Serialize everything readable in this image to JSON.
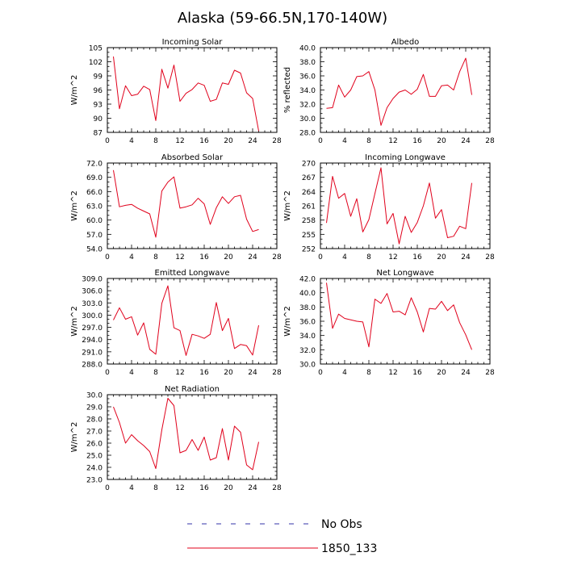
{
  "main_title": "Alaska (59-66.5N,170-140W)",
  "legend": [
    {
      "label": "No Obs",
      "color": "#3333aa",
      "style": "dashed"
    },
    {
      "label": "1850_133",
      "color": "#e0001b",
      "style": "solid"
    }
  ],
  "chart_data": [
    {
      "type": "line",
      "title": "Incoming Solar",
      "ylabel": "W/m^2",
      "xlim": [
        0,
        28
      ],
      "ylim": [
        87,
        105
      ],
      "xticks": [
        "0",
        "4",
        "8",
        "12",
        "16",
        "20",
        "24",
        "28"
      ],
      "yticks": [
        "87",
        "90",
        "93",
        "96",
        "99",
        "102",
        "105"
      ],
      "series": [
        {
          "name": "1850_133",
          "color": "#e0001b",
          "x": [
            1,
            2,
            3,
            4,
            5,
            6,
            7,
            8,
            9,
            10,
            11,
            12,
            13,
            14,
            15,
            16,
            17,
            18,
            19,
            20,
            21,
            22,
            23,
            24,
            25
          ],
          "y": [
            103.1,
            92.0,
            96.9,
            94.8,
            95.1,
            96.8,
            96.1,
            89.5,
            100.4,
            96.4,
            101.3,
            93.6,
            95.3,
            96.1,
            97.5,
            97.0,
            93.6,
            94.0,
            97.5,
            97.2,
            100.2,
            99.6,
            95.4,
            94.2,
            87.3
          ]
        }
      ]
    },
    {
      "type": "line",
      "title": "Albedo",
      "ylabel": "% reflected",
      "xlim": [
        0,
        28
      ],
      "ylim": [
        28,
        40
      ],
      "xticks": [
        "0",
        "4",
        "8",
        "12",
        "16",
        "20",
        "24",
        "28"
      ],
      "yticks": [
        "28.0",
        "30.0",
        "32.0",
        "34.0",
        "36.0",
        "38.0",
        "40.0"
      ],
      "series": [
        {
          "name": "1850_133",
          "color": "#e0001b",
          "x": [
            1,
            2,
            3,
            4,
            5,
            6,
            7,
            8,
            9,
            10,
            11,
            12,
            13,
            14,
            15,
            16,
            17,
            18,
            19,
            20,
            21,
            22,
            23,
            24,
            25
          ],
          "y": [
            31.4,
            31.5,
            34.7,
            33.0,
            34.0,
            35.9,
            36.0,
            36.6,
            34.0,
            29.0,
            31.5,
            32.8,
            33.7,
            34.0,
            33.4,
            34.1,
            36.2,
            33.1,
            33.1,
            34.6,
            34.7,
            34.0,
            36.6,
            38.5,
            33.3
          ]
        }
      ]
    },
    {
      "type": "line",
      "title": "Absorbed Solar",
      "ylabel": "W/m^2",
      "xlim": [
        0,
        28
      ],
      "ylim": [
        54,
        72
      ],
      "xticks": [
        "0",
        "4",
        "8",
        "12",
        "16",
        "20",
        "24",
        "28"
      ],
      "yticks": [
        "54.0",
        "57.0",
        "60.0",
        "63.0",
        "66.0",
        "69.0",
        "72.0"
      ],
      "series": [
        {
          "name": "1850_133",
          "color": "#e0001b",
          "x": [
            1,
            2,
            3,
            4,
            5,
            6,
            7,
            8,
            9,
            10,
            11,
            12,
            13,
            14,
            15,
            16,
            17,
            18,
            19,
            20,
            21,
            22,
            23,
            24,
            25
          ],
          "y": [
            70.5,
            62.8,
            63.1,
            63.3,
            62.5,
            61.9,
            61.3,
            56.4,
            66.1,
            68.0,
            69.1,
            62.5,
            62.8,
            63.2,
            64.6,
            63.4,
            59.1,
            62.6,
            64.9,
            63.5,
            64.9,
            65.2,
            60.2,
            57.6,
            58.0
          ]
        }
      ]
    },
    {
      "type": "line",
      "title": "Incoming Longwave",
      "ylabel": "W/m^2",
      "xlim": [
        0,
        28
      ],
      "ylim": [
        252,
        270
      ],
      "xticks": [
        "0",
        "4",
        "8",
        "12",
        "16",
        "20",
        "24",
        "28"
      ],
      "yticks": [
        "252",
        "255",
        "258",
        "261",
        "264",
        "267",
        "270"
      ],
      "series": [
        {
          "name": "1850_133",
          "color": "#e0001b",
          "x": [
            1,
            2,
            3,
            4,
            5,
            6,
            7,
            8,
            9,
            10,
            11,
            12,
            13,
            14,
            15,
            16,
            17,
            18,
            19,
            20,
            21,
            22,
            23,
            24,
            25
          ],
          "y": [
            257.4,
            267.2,
            262.6,
            263.6,
            258.8,
            262.5,
            255.5,
            258.1,
            263.6,
            269.0,
            257.2,
            259.4,
            253.0,
            258.8,
            255.4,
            257.5,
            261.0,
            265.8,
            258.4,
            260.2,
            254.3,
            254.6,
            256.7,
            256.2,
            265.8
          ]
        }
      ]
    },
    {
      "type": "line",
      "title": "Emitted Longwave",
      "ylabel": "W/m^2",
      "xlim": [
        0,
        28
      ],
      "ylim": [
        288,
        309
      ],
      "xticks": [
        "0",
        "4",
        "8",
        "12",
        "16",
        "20",
        "24",
        "28"
      ],
      "yticks": [
        "288.0",
        "291.0",
        "294.0",
        "297.0",
        "300.0",
        "303.0",
        "306.0",
        "309.0"
      ],
      "series": [
        {
          "name": "1850_133",
          "color": "#e0001b",
          "x": [
            1,
            2,
            3,
            4,
            5,
            6,
            7,
            8,
            9,
            10,
            11,
            12,
            13,
            14,
            15,
            16,
            17,
            18,
            19,
            20,
            21,
            22,
            23,
            24,
            25
          ],
          "y": [
            298.8,
            301.8,
            299.0,
            299.6,
            295.1,
            298.1,
            291.6,
            290.4,
            302.9,
            307.2,
            296.9,
            296.2,
            290.1,
            295.3,
            294.9,
            294.3,
            295.3,
            303.1,
            296.2,
            299.2,
            291.8,
            292.8,
            292.5,
            290.2,
            297.5
          ]
        }
      ]
    },
    {
      "type": "line",
      "title": "Net Longwave",
      "ylabel": "W/m^2",
      "xlim": [
        0,
        28
      ],
      "ylim": [
        30,
        42
      ],
      "xticks": [
        "0",
        "4",
        "8",
        "12",
        "16",
        "20",
        "24",
        "28"
      ],
      "yticks": [
        "30.0",
        "32.0",
        "34.0",
        "36.0",
        "38.0",
        "40.0",
        "42.0"
      ],
      "series": [
        {
          "name": "1850_133",
          "color": "#e0001b",
          "x": [
            1,
            2,
            3,
            4,
            5,
            6,
            7,
            8,
            9,
            10,
            11,
            12,
            13,
            14,
            15,
            16,
            17,
            18,
            19,
            20,
            21,
            22,
            23,
            24,
            25
          ],
          "y": [
            41.4,
            35.0,
            37.0,
            36.4,
            36.2,
            36.0,
            35.9,
            32.4,
            39.1,
            38.5,
            39.9,
            37.3,
            37.4,
            36.9,
            39.3,
            37.3,
            34.5,
            37.8,
            37.7,
            38.8,
            37.5,
            38.3,
            35.8,
            34.1,
            32.0
          ]
        }
      ]
    },
    {
      "type": "line",
      "title": "Net Radiation",
      "ylabel": "W/m^2",
      "xlim": [
        0,
        28
      ],
      "ylim": [
        23,
        30
      ],
      "xticks": [
        "0",
        "4",
        "8",
        "12",
        "16",
        "20",
        "24",
        "28"
      ],
      "yticks": [
        "23.0",
        "24.0",
        "25.0",
        "26.0",
        "27.0",
        "28.0",
        "29.0",
        "30.0"
      ],
      "series": [
        {
          "name": "1850_133",
          "color": "#e0001b",
          "x": [
            1,
            2,
            3,
            4,
            5,
            6,
            7,
            8,
            9,
            10,
            11,
            12,
            13,
            14,
            15,
            16,
            17,
            18,
            19,
            20,
            21,
            22,
            23,
            24,
            25
          ],
          "y": [
            29.0,
            27.7,
            26.0,
            26.7,
            26.2,
            25.8,
            25.3,
            23.9,
            27.1,
            29.7,
            29.1,
            25.2,
            25.4,
            26.3,
            25.4,
            26.5,
            24.6,
            24.8,
            27.2,
            24.6,
            27.4,
            26.9,
            24.2,
            23.8,
            26.1
          ]
        }
      ]
    }
  ]
}
